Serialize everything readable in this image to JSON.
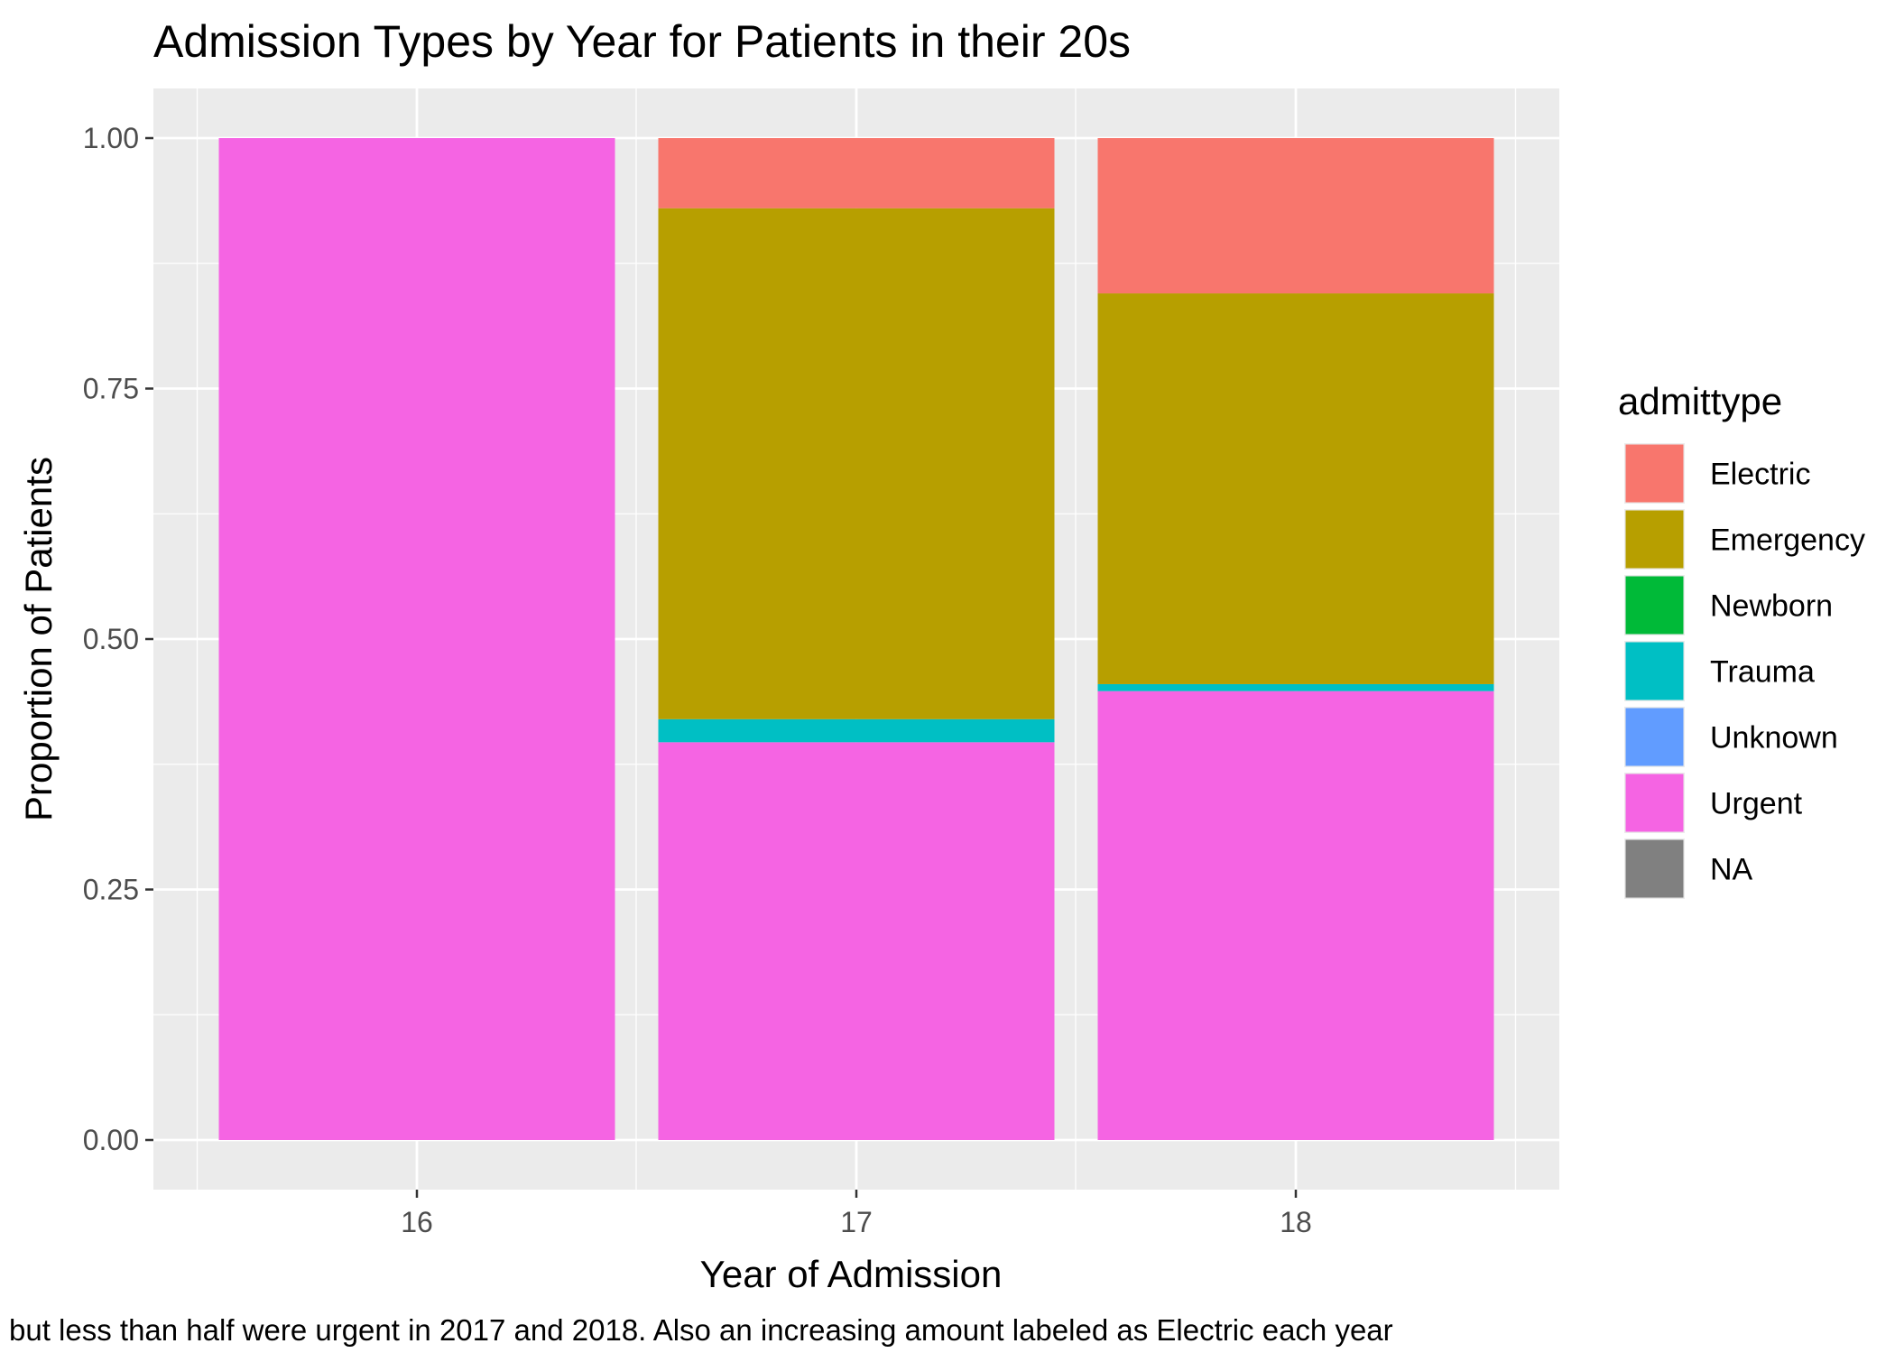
{
  "chart_data": {
    "type": "bar",
    "stacked": true,
    "title": "Admission Types by Year for Patients in their 20s",
    "xlabel": "Year of Admission",
    "ylabel": "Proportion of Patients",
    "caption": "but less than half were urgent in 2017 and 2018. Also an increasing amount labeled as Electric each year",
    "categories": [
      "16",
      "17",
      "18"
    ],
    "yticks": [
      "0.00",
      "0.25",
      "0.50",
      "0.75",
      "1.00"
    ],
    "ylim": [
      0,
      1.0
    ],
    "grid": true,
    "legend_title": "admittype",
    "legend_position": "right",
    "series": [
      {
        "name": "Electric",
        "color": "#F8766D",
        "values": [
          0,
          0.07,
          0.155
        ]
      },
      {
        "name": "Emergency",
        "color": "#B79F00",
        "values": [
          0,
          0.51,
          0.39
        ]
      },
      {
        "name": "Newborn",
        "color": "#00BA38",
        "values": [
          0,
          0,
          0
        ]
      },
      {
        "name": "Trauma",
        "color": "#00BFC4",
        "values": [
          0,
          0.023,
          0.007
        ]
      },
      {
        "name": "Unknown",
        "color": "#619CFF",
        "values": [
          0,
          0,
          0
        ]
      },
      {
        "name": "Urgent",
        "color": "#F564E3",
        "values": [
          1.0,
          0.397,
          0.448
        ]
      },
      {
        "name": "NA",
        "color": "#808080",
        "values": [
          0,
          0,
          0
        ]
      }
    ]
  }
}
